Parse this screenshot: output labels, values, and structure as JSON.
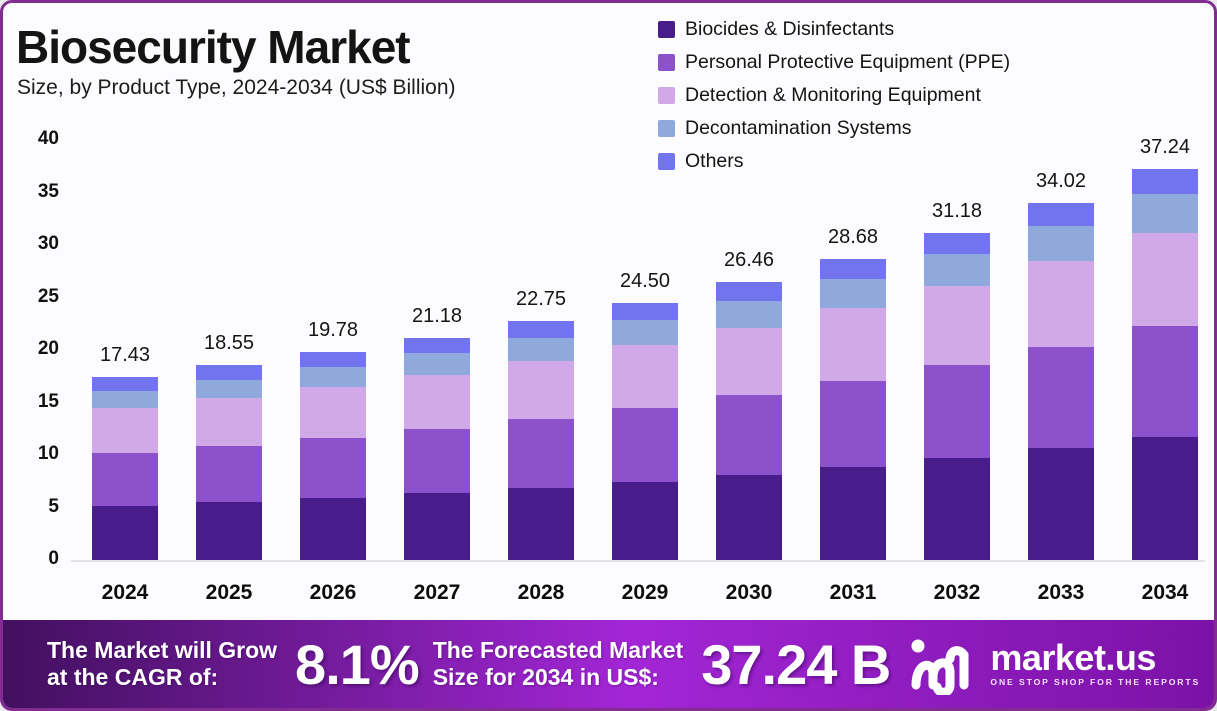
{
  "header": {
    "title": "Biosecurity Market",
    "subtitle": "Size, by Product Type, 2024-2034 (US$ Billion)"
  },
  "legend": {
    "items": [
      {
        "label": "Biocides & Disinfectants",
        "color": "#481c8b"
      },
      {
        "label": "Personal Protective Equipment (PPE)",
        "color": "#8c52cc"
      },
      {
        "label": "Detection & Monitoring Equipment",
        "color": "#d2a9e8"
      },
      {
        "label": "Decontamination Systems",
        "color": "#90a9dc"
      },
      {
        "label": "Others",
        "color": "#7274ee"
      }
    ]
  },
  "chart_data": {
    "type": "bar",
    "stacked": true,
    "title": "Biosecurity Market Size, by Product Type, 2024-2034 (US$ Billion)",
    "categories": [
      "2024",
      "2025",
      "2026",
      "2027",
      "2028",
      "2029",
      "2030",
      "2031",
      "2032",
      "2033",
      "2034"
    ],
    "series": [
      {
        "name": "Biocides & Disinfectants",
        "color": "#481c8b",
        "values": [
          5.14,
          5.51,
          5.91,
          6.39,
          6.89,
          7.47,
          8.13,
          8.86,
          9.7,
          10.65,
          11.73
        ]
      },
      {
        "name": "Personal Protective Equipment (PPE)",
        "color": "#8c52cc",
        "values": [
          5.02,
          5.34,
          5.68,
          6.07,
          6.52,
          7.01,
          7.56,
          8.18,
          8.88,
          9.68,
          10.58
        ]
      },
      {
        "name": "Detection & Monitoring Equipment",
        "color": "#d2a9e8",
        "values": [
          4.34,
          4.59,
          4.88,
          5.2,
          5.56,
          5.97,
          6.41,
          6.92,
          7.49,
          8.13,
          8.86
        ]
      },
      {
        "name": "Decontamination Systems",
        "color": "#90a9dc",
        "values": [
          1.62,
          1.74,
          1.87,
          2.01,
          2.18,
          2.36,
          2.57,
          2.81,
          3.07,
          3.38,
          3.72
        ]
      },
      {
        "name": "Others",
        "color": "#7274ee",
        "values": [
          1.31,
          1.37,
          1.44,
          1.51,
          1.6,
          1.69,
          1.79,
          1.91,
          2.04,
          2.18,
          2.35
        ]
      }
    ],
    "totals": [
      "17.43",
      "18.55",
      "19.78",
      "21.18",
      "22.75",
      "24.50",
      "26.46",
      "28.68",
      "31.18",
      "34.02",
      "37.24"
    ],
    "xlabel": "",
    "ylabel": "US$ Billion",
    "ylim": [
      0,
      40
    ],
    "yticks": [
      0,
      5,
      10,
      15,
      20,
      25,
      30,
      35,
      40
    ],
    "grid": false,
    "legend_position": "top-right"
  },
  "banner": {
    "cagr_label_line1": "The Market will Grow",
    "cagr_label_line2": "at the CAGR of:",
    "cagr_value": "8.1%",
    "forecast_label_line1": "The Forecasted Market",
    "forecast_label_line2": "Size for 2034 in US$:",
    "forecast_value": "37.24 B",
    "logo_text": "market.us",
    "logo_tagline": "ONE STOP SHOP FOR THE REPORTS",
    "gradient": [
      "#42105f",
      "#a326d6",
      "#7b12a6"
    ]
  }
}
